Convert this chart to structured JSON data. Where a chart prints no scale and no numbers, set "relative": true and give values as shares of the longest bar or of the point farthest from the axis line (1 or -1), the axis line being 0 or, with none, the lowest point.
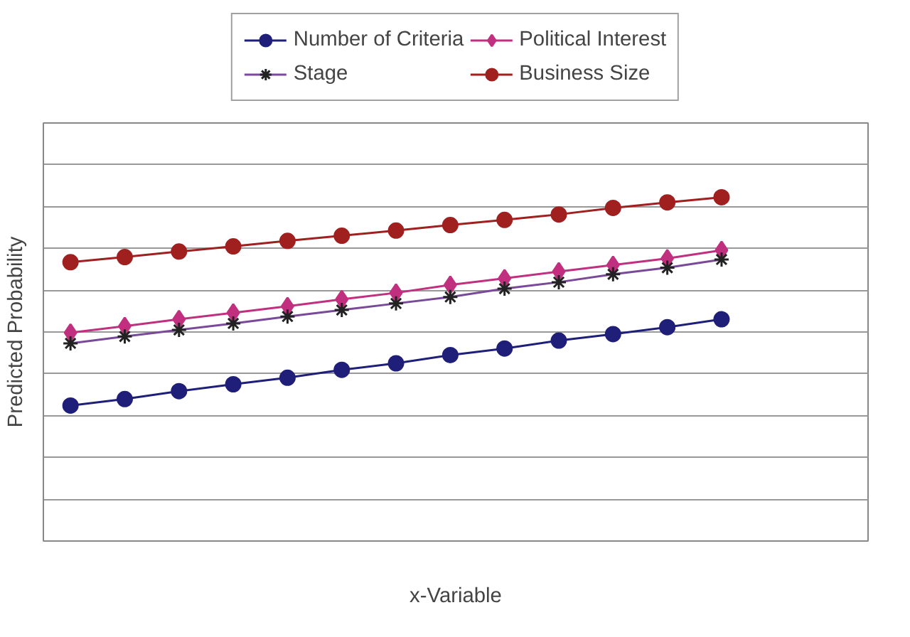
{
  "chart_data": {
    "type": "line",
    "relative": true,
    "xlabel": "x-Variable",
    "ylabel": "Predicted Probability",
    "categories": [
      null,
      null,
      null,
      null,
      null,
      null,
      null,
      null,
      null,
      null,
      null,
      null,
      null
    ],
    "grid": "y",
    "legend": "top",
    "series": [
      {
        "name": "Number of Criteria",
        "color": "#1f1f7a",
        "marker": "circle",
        "values": [
          0.394,
          0.413,
          0.436,
          0.456,
          0.475,
          0.498,
          0.517,
          0.541,
          0.56,
          0.583,
          0.602,
          0.622,
          0.645
        ]
      },
      {
        "name": "Political Interest",
        "color": "#c0307f",
        "marker": "diamond",
        "values": [
          0.606,
          0.625,
          0.645,
          0.664,
          0.683,
          0.703,
          0.722,
          0.745,
          0.764,
          0.784,
          0.803,
          0.822,
          0.846
        ]
      },
      {
        "name": "Stage",
        "color": "#7a4a9a",
        "marker": "cross",
        "values": [
          0.575,
          0.595,
          0.614,
          0.633,
          0.653,
          0.672,
          0.691,
          0.71,
          0.734,
          0.753,
          0.776,
          0.795,
          0.819
        ]
      },
      {
        "name": "Business Size",
        "color": "#a02020",
        "marker": "circle",
        "values": [
          0.811,
          0.826,
          0.842,
          0.857,
          0.873,
          0.888,
          0.903,
          0.919,
          0.934,
          0.95,
          0.969,
          0.985,
          1.0
        ]
      }
    ]
  }
}
